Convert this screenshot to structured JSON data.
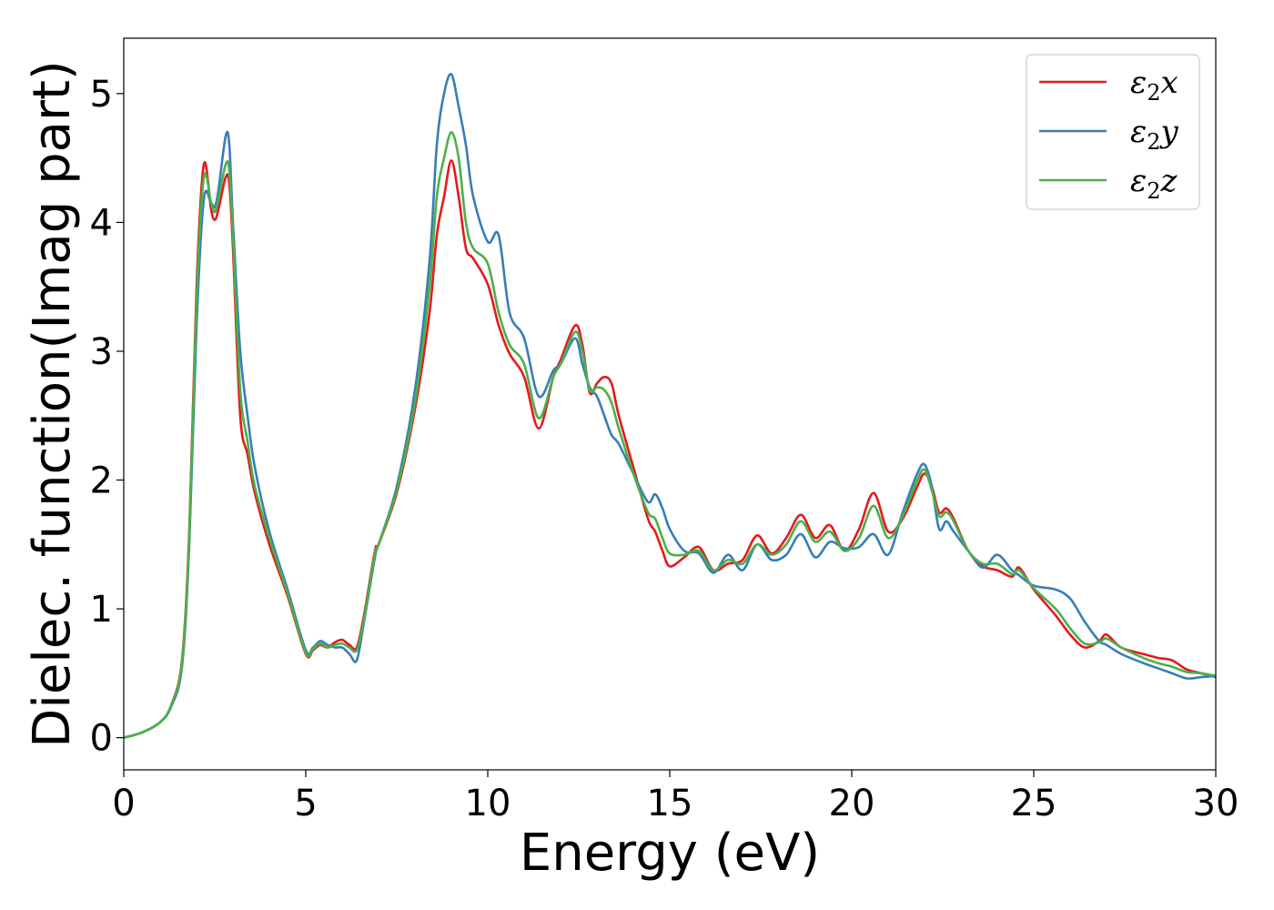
{
  "chart_data": {
    "type": "line",
    "title": "",
    "xlabel": "Energy (eV)",
    "ylabel": "Dielec. function(Imag part)",
    "xlim": [
      0,
      30
    ],
    "ylim": [
      -0.25,
      5.43
    ],
    "xticks": [
      "0",
      "5",
      "10",
      "15",
      "20",
      "25",
      "30"
    ],
    "yticks": [
      "0",
      "1",
      "2",
      "3",
      "4",
      "5"
    ],
    "grid": false,
    "legend_position": "top-right",
    "series": [
      {
        "name": "ε2x",
        "label_main": "ε",
        "label_sub": "2",
        "label_var": "x",
        "color": "#e41a1c",
        "x": [
          0,
          0.5,
          1.0,
          1.3,
          1.6,
          1.8,
          2.0,
          2.2,
          2.4,
          2.5,
          2.6,
          2.8,
          2.9,
          3.0,
          3.2,
          3.4,
          3.6,
          4.0,
          4.5,
          5.0,
          5.2,
          5.4,
          5.6,
          5.8,
          6.0,
          6.2,
          6.4,
          6.6,
          6.9,
          7.0,
          7.5,
          8.0,
          8.4,
          8.6,
          8.8,
          9.0,
          9.2,
          9.4,
          9.6,
          10.0,
          10.3,
          10.6,
          11.0,
          11.4,
          11.8,
          12.0,
          12.4,
          12.6,
          12.8,
          13.0,
          13.2,
          13.4,
          13.6,
          14.0,
          14.4,
          14.6,
          14.8,
          15.0,
          15.4,
          15.8,
          16.2,
          16.6,
          17.0,
          17.4,
          17.8,
          18.2,
          18.6,
          19.0,
          19.4,
          19.8,
          20.2,
          20.6,
          21.0,
          21.4,
          21.8,
          22.0,
          22.2,
          22.4,
          22.6,
          22.8,
          23.2,
          23.6,
          24.0,
          24.4,
          24.6,
          25.0,
          25.6,
          26.0,
          26.4,
          26.8,
          27.0,
          27.4,
          28.0,
          28.4,
          28.8,
          29.2,
          29.6,
          30.0
        ],
        "values": [
          0,
          0.04,
          0.12,
          0.25,
          0.6,
          1.6,
          3.5,
          4.45,
          4.1,
          4.02,
          4.1,
          4.35,
          4.3,
          3.8,
          2.5,
          2.2,
          1.9,
          1.5,
          1.1,
          0.65,
          0.68,
          0.72,
          0.7,
          0.74,
          0.76,
          0.72,
          0.7,
          0.95,
          1.45,
          1.5,
          1.9,
          2.55,
          3.3,
          3.9,
          4.2,
          4.48,
          4.2,
          3.8,
          3.72,
          3.52,
          3.2,
          2.98,
          2.8,
          2.4,
          2.8,
          2.93,
          3.2,
          3.05,
          2.68,
          2.75,
          2.8,
          2.75,
          2.5,
          2.1,
          1.7,
          1.6,
          1.45,
          1.33,
          1.4,
          1.48,
          1.3,
          1.35,
          1.38,
          1.57,
          1.43,
          1.55,
          1.73,
          1.55,
          1.65,
          1.45,
          1.62,
          1.9,
          1.6,
          1.7,
          1.95,
          2.05,
          1.95,
          1.75,
          1.78,
          1.7,
          1.45,
          1.33,
          1.3,
          1.25,
          1.32,
          1.15,
          0.95,
          0.8,
          0.7,
          0.75,
          0.8,
          0.7,
          0.65,
          0.62,
          0.6,
          0.53,
          0.5,
          0.47
        ]
      },
      {
        "name": "ε2y",
        "label_main": "ε",
        "label_sub": "2",
        "label_var": "y",
        "color": "#377eb8",
        "x": [
          0,
          0.5,
          1.0,
          1.3,
          1.6,
          1.8,
          2.0,
          2.2,
          2.4,
          2.5,
          2.6,
          2.8,
          2.9,
          3.0,
          3.2,
          3.4,
          3.6,
          4.0,
          4.5,
          5.0,
          5.2,
          5.4,
          5.6,
          5.8,
          6.0,
          6.2,
          6.4,
          6.6,
          6.9,
          7.0,
          7.5,
          8.0,
          8.4,
          8.6,
          8.8,
          9.0,
          9.2,
          9.4,
          9.6,
          10.0,
          10.3,
          10.6,
          11.0,
          11.4,
          11.8,
          12.0,
          12.4,
          12.6,
          12.8,
          13.0,
          13.2,
          13.4,
          13.6,
          14.0,
          14.4,
          14.6,
          14.8,
          15.0,
          15.4,
          15.8,
          16.2,
          16.6,
          17.0,
          17.4,
          17.8,
          18.2,
          18.6,
          19.0,
          19.4,
          19.8,
          20.2,
          20.6,
          21.0,
          21.4,
          21.8,
          22.0,
          22.2,
          22.4,
          22.6,
          22.8,
          23.2,
          23.6,
          24.0,
          24.4,
          24.6,
          25.0,
          25.6,
          26.0,
          26.4,
          26.8,
          27.0,
          27.4,
          28.0,
          28.4,
          28.8,
          29.2,
          29.6,
          30.0
        ],
        "values": [
          0,
          0.04,
          0.12,
          0.24,
          0.55,
          1.5,
          3.2,
          4.18,
          4.15,
          4.12,
          4.25,
          4.67,
          4.6,
          4.0,
          3.0,
          2.5,
          2.1,
          1.6,
          1.15,
          0.68,
          0.7,
          0.75,
          0.72,
          0.7,
          0.7,
          0.65,
          0.6,
          0.9,
          1.4,
          1.5,
          1.95,
          2.7,
          3.7,
          4.6,
          5.0,
          5.15,
          4.9,
          4.6,
          4.2,
          3.85,
          3.9,
          3.3,
          3.1,
          2.65,
          2.85,
          2.9,
          3.1,
          2.9,
          2.72,
          2.65,
          2.5,
          2.35,
          2.28,
          2.05,
          1.83,
          1.89,
          1.78,
          1.62,
          1.45,
          1.43,
          1.28,
          1.42,
          1.3,
          1.5,
          1.38,
          1.42,
          1.58,
          1.4,
          1.52,
          1.47,
          1.48,
          1.58,
          1.42,
          1.75,
          2.05,
          2.12,
          1.95,
          1.62,
          1.68,
          1.6,
          1.45,
          1.32,
          1.42,
          1.3,
          1.26,
          1.18,
          1.15,
          1.08,
          0.9,
          0.75,
          0.72,
          0.65,
          0.58,
          0.54,
          0.5,
          0.46,
          0.47,
          0.48
        ]
      },
      {
        "name": "ε2z",
        "label_main": "ε",
        "label_sub": "2",
        "label_var": "z",
        "color": "#4daf4a",
        "x": [
          0,
          0.5,
          1.0,
          1.3,
          1.6,
          1.8,
          2.0,
          2.2,
          2.4,
          2.5,
          2.6,
          2.8,
          2.9,
          3.0,
          3.2,
          3.4,
          3.6,
          4.0,
          4.5,
          5.0,
          5.2,
          5.4,
          5.6,
          5.8,
          6.0,
          6.2,
          6.4,
          6.6,
          6.9,
          7.0,
          7.5,
          8.0,
          8.4,
          8.6,
          8.8,
          9.0,
          9.2,
          9.4,
          9.6,
          10.0,
          10.3,
          10.6,
          11.0,
          11.4,
          11.8,
          12.0,
          12.4,
          12.6,
          12.8,
          13.0,
          13.2,
          13.4,
          13.6,
          14.0,
          14.4,
          14.6,
          14.8,
          15.0,
          15.4,
          15.8,
          16.2,
          16.6,
          17.0,
          17.4,
          17.8,
          18.2,
          18.6,
          19.0,
          19.4,
          19.8,
          20.2,
          20.6,
          21.0,
          21.4,
          21.8,
          22.0,
          22.2,
          22.4,
          22.6,
          22.8,
          23.2,
          23.6,
          24.0,
          24.4,
          24.6,
          25.0,
          25.6,
          26.0,
          26.4,
          26.8,
          27.0,
          27.4,
          28.0,
          28.4,
          28.8,
          29.2,
          29.6,
          30.0
        ],
        "values": [
          0,
          0.04,
          0.12,
          0.25,
          0.58,
          1.55,
          3.4,
          4.35,
          4.15,
          4.08,
          4.18,
          4.45,
          4.4,
          3.9,
          2.7,
          2.3,
          1.95,
          1.55,
          1.12,
          0.66,
          0.69,
          0.73,
          0.7,
          0.72,
          0.73,
          0.7,
          0.68,
          0.92,
          1.43,
          1.5,
          1.92,
          2.6,
          3.5,
          4.2,
          4.5,
          4.7,
          4.5,
          4.0,
          3.8,
          3.68,
          3.3,
          3.05,
          2.9,
          2.48,
          2.8,
          2.9,
          3.15,
          3.0,
          2.7,
          2.72,
          2.7,
          2.6,
          2.4,
          2.05,
          1.75,
          1.7,
          1.55,
          1.43,
          1.42,
          1.45,
          1.3,
          1.38,
          1.35,
          1.5,
          1.42,
          1.5,
          1.68,
          1.52,
          1.6,
          1.45,
          1.55,
          1.8,
          1.55,
          1.72,
          2.0,
          2.08,
          1.92,
          1.72,
          1.75,
          1.68,
          1.45,
          1.35,
          1.35,
          1.27,
          1.3,
          1.16,
          1.0,
          0.85,
          0.73,
          0.74,
          0.77,
          0.7,
          0.62,
          0.58,
          0.55,
          0.51,
          0.5,
          0.48
        ]
      }
    ]
  }
}
